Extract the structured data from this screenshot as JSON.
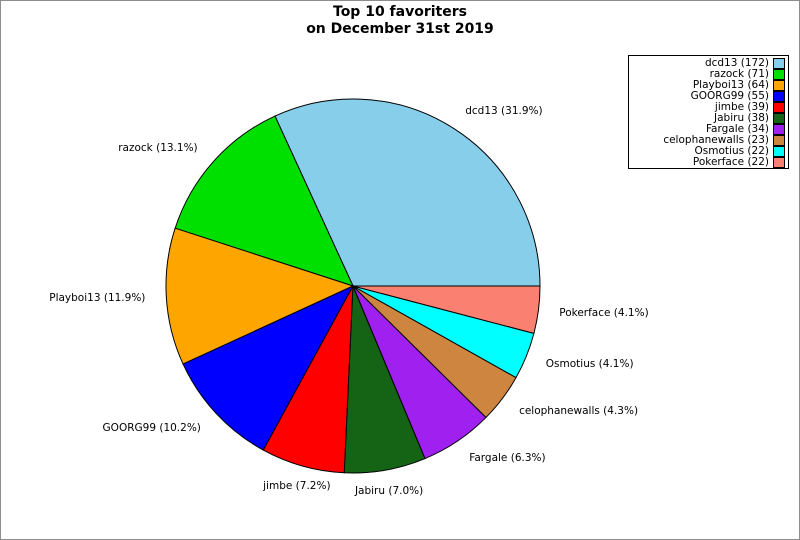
{
  "title": {
    "line1": "Top 10 favoriters",
    "line2": "on December 31st 2019"
  },
  "colors": {
    "background": "#ffffff",
    "figure_border": "#8c8c8c",
    "wedge_edge": "#000000",
    "legend_border": "#000000",
    "text": "#000000"
  },
  "chart_data": {
    "type": "pie",
    "title": "Top 10 favoriters on December 31st 2019",
    "total": 540,
    "start_angle_deg": 0,
    "direction": "counterclockwise",
    "legend_position": "upper right",
    "wedge_edge_color": "#000000",
    "series": [
      {
        "name": "dcd13",
        "count": 172,
        "pct": 31.9,
        "color": "#87ceeb",
        "slice_label": "dcd13 (31.9%)",
        "legend_label": "dcd13 (172)"
      },
      {
        "name": "razock",
        "count": 71,
        "pct": 13.1,
        "color": "#00e000",
        "slice_label": "razock (13.1%)",
        "legend_label": "razock (71)"
      },
      {
        "name": "Playboi13",
        "count": 64,
        "pct": 11.9,
        "color": "#ffa500",
        "slice_label": "Playboi13 (11.9%)",
        "legend_label": "Playboi13 (64)"
      },
      {
        "name": "GOORG99",
        "count": 55,
        "pct": 10.2,
        "color": "#0000ff",
        "slice_label": "GOORG99 (10.2%)",
        "legend_label": "GOORG99 (55)"
      },
      {
        "name": "jimbe",
        "count": 39,
        "pct": 7.2,
        "color": "#ff0000",
        "slice_label": "jimbe (7.2%)",
        "legend_label": "jimbe (39)"
      },
      {
        "name": "Jabiru",
        "count": 38,
        "pct": 7.0,
        "color": "#156415",
        "slice_label": "Jabiru (7.0%)",
        "legend_label": "Jabiru (38)"
      },
      {
        "name": "Fargale",
        "count": 34,
        "pct": 6.3,
        "color": "#a020f0",
        "slice_label": "Fargale (6.3%)",
        "legend_label": "Fargale (34)"
      },
      {
        "name": "celophanewalls",
        "count": 23,
        "pct": 4.3,
        "color": "#cd853f",
        "slice_label": "celophanewalls (4.3%)",
        "legend_label": "celophanewalls (23)"
      },
      {
        "name": "Osmotius",
        "count": 22,
        "pct": 4.1,
        "color": "#00ffff",
        "slice_label": "Osmotius (4.1%)",
        "legend_label": "Osmotius (22)"
      },
      {
        "name": "Pokerface",
        "count": 22,
        "pct": 4.1,
        "color": "#fa8072",
        "slice_label": "Pokerface (4.1%)",
        "legend_label": "Pokerface (22)"
      }
    ]
  }
}
